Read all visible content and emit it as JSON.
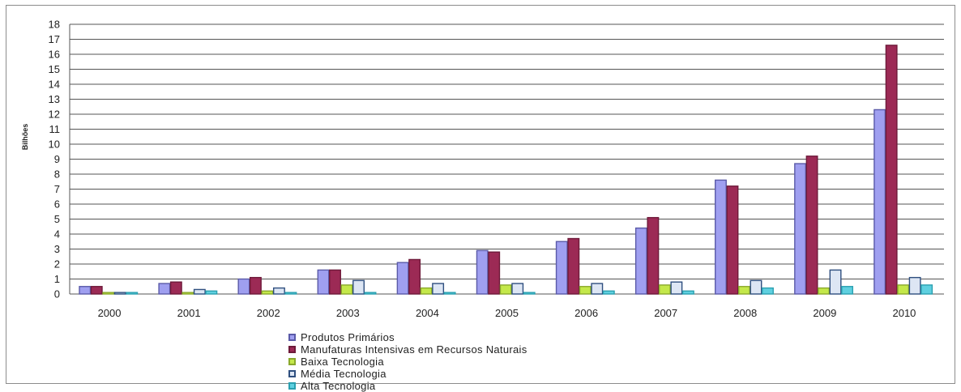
{
  "chart_data": {
    "type": "bar",
    "ylabel": "Bilhões",
    "ylim": [
      0,
      18
    ],
    "yticks": [
      "0",
      "1",
      "2",
      "3",
      "4",
      "5",
      "6",
      "7",
      "8",
      "9",
      "10",
      "11",
      "12",
      "13",
      "14",
      "15",
      "16",
      "17",
      "18"
    ],
    "grid": true,
    "legend_position": "bottom",
    "categories": [
      "2000",
      "2001",
      "2002",
      "2003",
      "2004",
      "2005",
      "2006",
      "2007",
      "2008",
      "2009",
      "2010"
    ],
    "series": [
      {
        "name": "Produtos Primários",
        "color": "#9f9ff0",
        "border": "#5a5aa8",
        "values": [
          0.5,
          0.7,
          1.0,
          1.6,
          2.1,
          2.9,
          3.5,
          4.4,
          7.6,
          8.7,
          12.3
        ]
      },
      {
        "name": "Manufaturas Intensivas em Recursos Naturais",
        "color": "#9c2a55",
        "border": "#6e1a3a",
        "values": [
          0.5,
          0.8,
          1.1,
          1.6,
          2.3,
          2.8,
          3.7,
          5.1,
          7.2,
          9.2,
          16.6
        ]
      },
      {
        "name": "Baixa Tecnologia",
        "color": "#c4e84a",
        "border": "#8aa82c",
        "values": [
          0.1,
          0.1,
          0.2,
          0.6,
          0.4,
          0.6,
          0.5,
          0.6,
          0.5,
          0.4,
          0.6
        ]
      },
      {
        "name": "Média Tecnologia",
        "color": "#dde6f4",
        "border": "#2f4f7f",
        "values": [
          0.1,
          0.3,
          0.4,
          0.9,
          0.7,
          0.7,
          0.7,
          0.8,
          0.9,
          1.6,
          1.1
        ]
      },
      {
        "name": "Alta Tecnologia",
        "color": "#5fd0e0",
        "border": "#2aa0b0",
        "values": [
          0.1,
          0.2,
          0.1,
          0.1,
          0.1,
          0.1,
          0.2,
          0.2,
          0.4,
          0.5,
          0.6
        ]
      }
    ]
  }
}
